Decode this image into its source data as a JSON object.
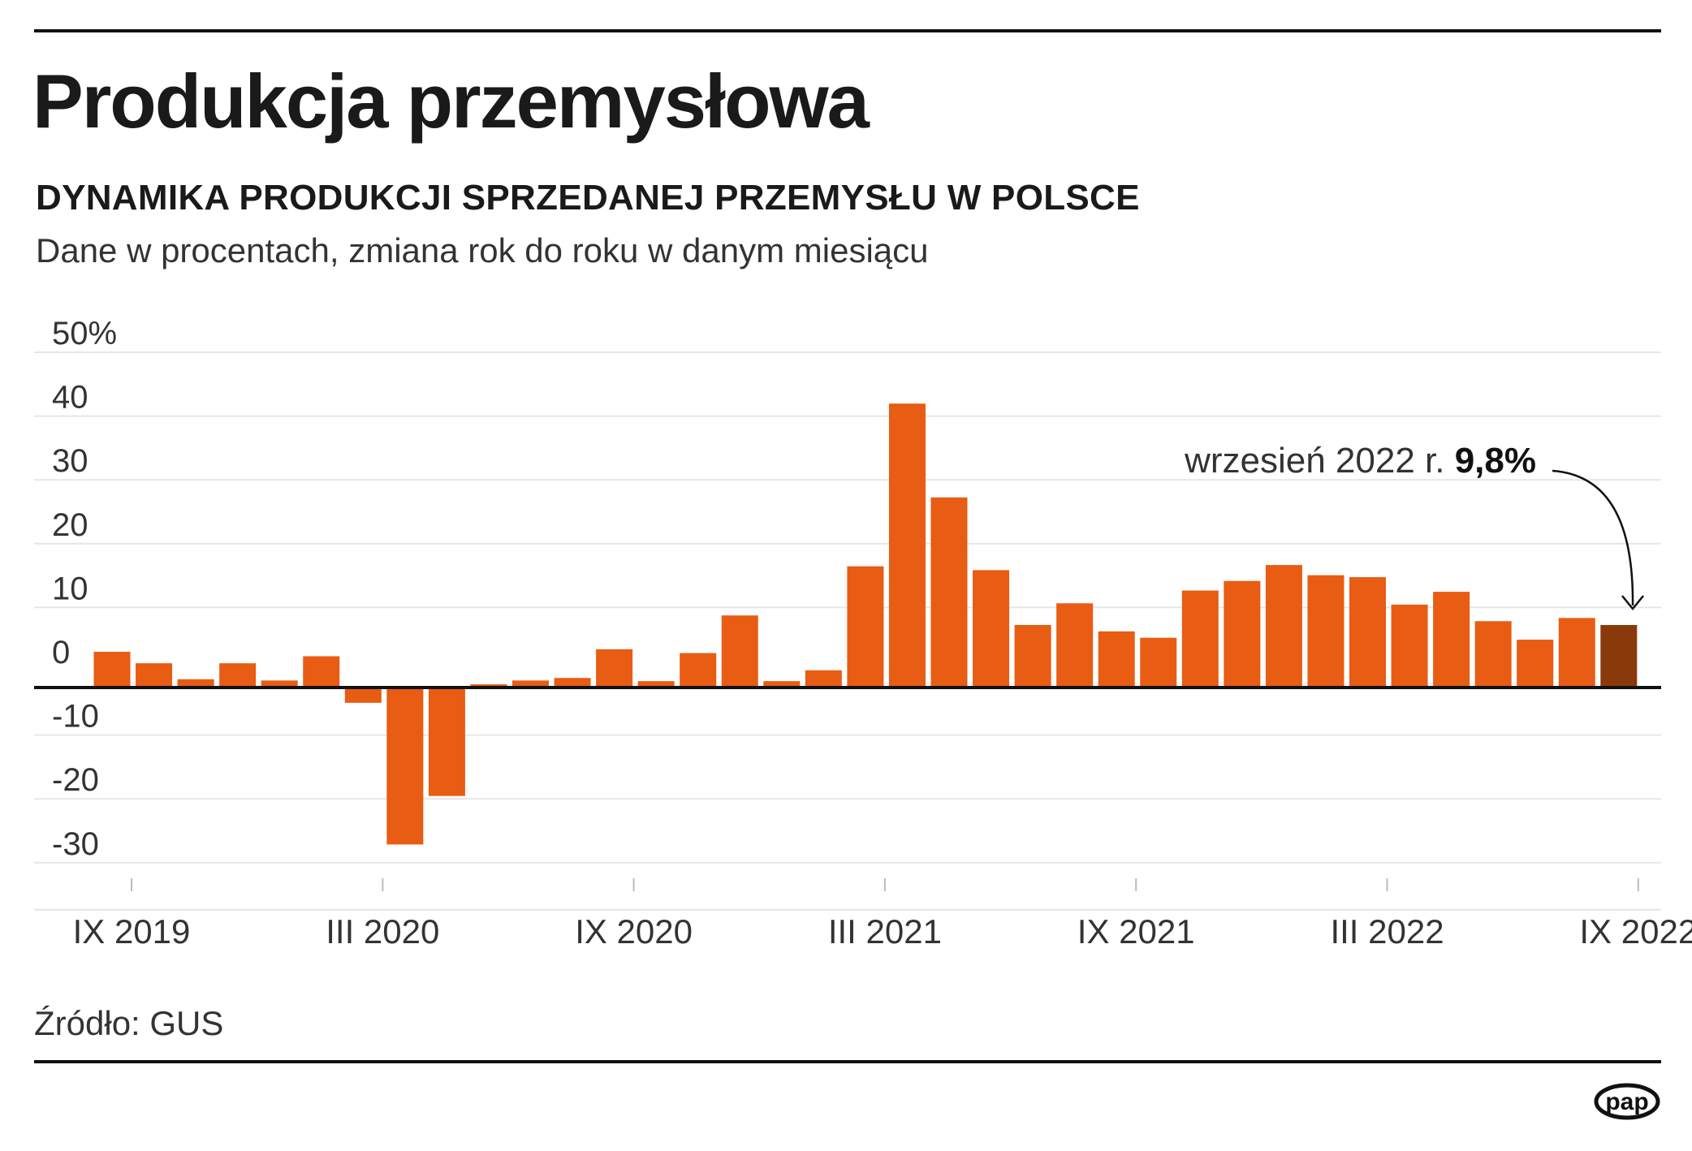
{
  "header": {
    "title": "Produkcja przemysłowa",
    "subtitle": "DYNAMIKA PRODUKCJI SPRZEDANEJ PRZEMYSŁU W POLSCE",
    "description": "Dane w procentach, zmiana rok do roku w danym miesiącu"
  },
  "footer": {
    "source": "Źródło: GUS",
    "logo_text": "pap"
  },
  "colors": {
    "bar": "#e85c14",
    "bar_highlight": "#8a3a0a",
    "grid": "#e6e6e6",
    "axis": "#111111",
    "text": "#333333"
  },
  "chart_data": {
    "type": "bar",
    "title": "",
    "xlabel": "",
    "ylabel": "",
    "ylim": [
      -30,
      50
    ],
    "yticks": [
      50,
      40,
      30,
      20,
      10,
      0,
      -10,
      -20,
      -30
    ],
    "ytick_labels": [
      "50%",
      "40",
      "30",
      "20",
      "10",
      "0",
      "-10",
      "-20",
      "-30"
    ],
    "grid": true,
    "categories": [
      "IX 2019",
      "X 2019",
      "XI 2019",
      "XII 2019",
      "I 2020",
      "II 2020",
      "III 2020",
      "IV 2020",
      "V 2020",
      "VI 2020",
      "VII 2020",
      "VIII 2020",
      "IX 2020",
      "X 2020",
      "XI 2020",
      "XII 2020",
      "I 2021",
      "II 2021",
      "III 2021",
      "IV 2021",
      "V 2021",
      "VI 2021",
      "VII 2021",
      "VIII 2021",
      "IX 2021",
      "X 2021",
      "XI 2021",
      "XII 2021",
      "I 2022",
      "II 2022",
      "III 2022",
      "IV 2022",
      "V 2022",
      "VI 2022",
      "VII 2022",
      "VIII 2022",
      "IX 2022"
    ],
    "values": [
      5.6,
      3.8,
      1.3,
      3.8,
      1.1,
      4.9,
      -2.4,
      -24.6,
      -17.0,
      0.5,
      1.1,
      1.5,
      6.0,
      1.0,
      5.4,
      11.3,
      1.0,
      2.7,
      19.0,
      44.5,
      29.8,
      18.4,
      9.8,
      13.2,
      8.8,
      7.8,
      15.2,
      16.7,
      19.2,
      17.6,
      17.3,
      13.0,
      15.0,
      10.4,
      7.5,
      10.9,
      9.8
    ],
    "xtick_labels": [
      "IX 2019",
      "III 2020",
      "IX 2020",
      "III 2021",
      "IX 2021",
      "III 2022",
      "IX 2022"
    ],
    "xtick_indices": [
      0,
      6,
      12,
      18,
      24,
      30,
      36
    ],
    "highlight_index": 36,
    "annotation": {
      "text": "wrzesień 2022 r. ",
      "value_text": "9,8%"
    }
  }
}
